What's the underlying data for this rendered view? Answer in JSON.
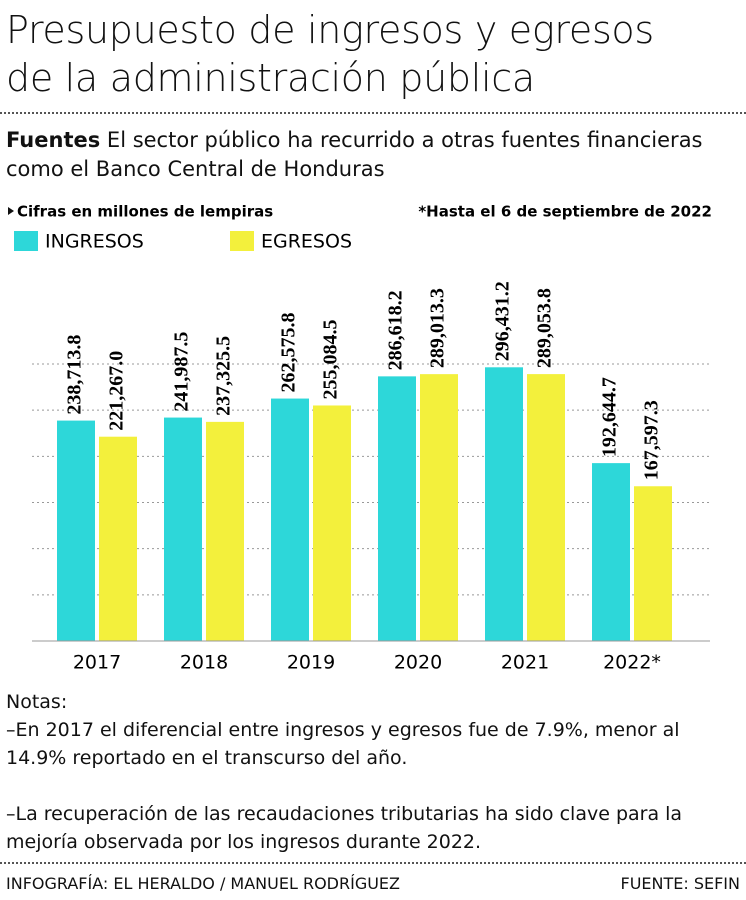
{
  "chart_data": {
    "type": "bar",
    "title": "Presupuesto de ingresos y egresos de la administración pública",
    "subtitle": {
      "label": "Fuentes",
      "text": "El sector público ha recurrido a otras fuentes financieras como el Banco Central de Honduras"
    },
    "annotations": [
      "Cifras en millones de lempiras",
      "*Hasta el 6 de septiembre de 2022"
    ],
    "categories": [
      "2017",
      "2018",
      "2019",
      "2020",
      "2021",
      "2022*"
    ],
    "series": [
      {
        "name": "INGRESOS",
        "color": "#2dd7d9",
        "values": [
          238713.8,
          241987.5,
          262575.8,
          286618.2,
          296431.2,
          192644.7
        ],
        "value_labels": [
          "238,713.8",
          "241,987.5",
          "262,575.8",
          "286,618.2",
          "296,431.2",
          "192,644.7"
        ]
      },
      {
        "name": "EGRESOS",
        "color": "#f3f03c",
        "values": [
          221267.0,
          237325.5,
          255084.5,
          289013.3,
          289053.8,
          167597.3
        ],
        "value_labels": [
          "221,267.0",
          "237,325.5",
          "255,084.5",
          "289,013.3",
          "289,053.8",
          "167,597.3"
        ]
      }
    ],
    "ylim": [
      0,
      300000
    ],
    "yticks": [
      0,
      50000,
      100000,
      150000,
      200000,
      250000,
      300000
    ],
    "grid": true,
    "notes": {
      "heading": "Notas:",
      "items": [
        "–En 2017 el diferencial entre ingresos y egresos fue de 7.9%, menor al 14.9% reportado en el transcurso del año.",
        "–La recuperación de las recaudaciones tributarias ha sido clave para la mejoría observada por los ingresos durante 2022."
      ]
    },
    "credit": "INFOGRAFÍA: EL HERALDO / MANUEL RODRÍGUEZ",
    "source": "FUENTE: SEFIN"
  }
}
